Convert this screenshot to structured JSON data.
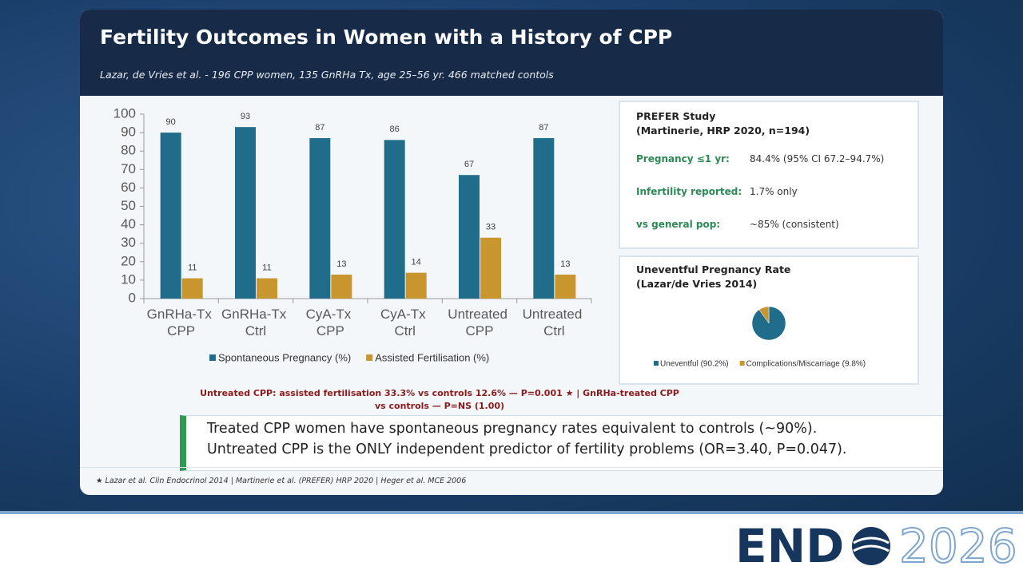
{
  "header": {
    "title": "Fertility Outcomes in Women with a History of CPP",
    "subtitle": "Lazar, de Vries et al. - 196 CPP women, 135 GnRHa Tx, age 25–56 yr. 466 matched contols"
  },
  "chart_data": [
    {
      "type": "bar",
      "categories": [
        "GnRHa-Tx CPP",
        "GnRHa-Tx Ctrl",
        "CyA-Tx CPP",
        "CyA-Tx Ctrl",
        "Untreated CPP",
        "Untreated Ctrl"
      ],
      "series": [
        {
          "name": "Spontaneous Pregnancy (%)",
          "color": "#1f6d8a",
          "values": [
            90,
            93,
            87,
            86,
            67,
            87
          ]
        },
        {
          "name": "Assisted Fertilisation (%)",
          "color": "#c9952f",
          "values": [
            11,
            11,
            13,
            14,
            33,
            13
          ]
        }
      ],
      "ylim": [
        0,
        100
      ],
      "yticks": [
        0,
        10,
        20,
        30,
        40,
        50,
        60,
        70,
        80,
        90,
        100
      ],
      "grid": false
    },
    {
      "type": "pie",
      "title": "Uneventful Pregnancy Rate",
      "subtitle": "(Lazar/de Vries 2014)",
      "categories": [
        "Uneventful (90.2%)",
        "Complications/Miscarriage (9.8%)"
      ],
      "values": [
        90.2,
        9.8
      ],
      "colors": [
        "#1f6d8a",
        "#c9952f"
      ]
    }
  ],
  "note": "Untreated CPP: assisted fertilisation 33.3% vs controls 12.6% — P=0.001 ★ | GnRHa-treated CPP vs controls — P=NS (1.00)",
  "prefer": {
    "title": "PREFER Study",
    "subtitle": "(Martinerie, HRP 2020, n=194)",
    "rows": [
      [
        "Pregnancy ≤1 yr:",
        "84.4% (95% CI 67.2–94.7%)"
      ],
      [
        "Infertility reported:",
        "1.7% only"
      ],
      [
        "vs general pop:",
        "~85% (consistent)"
      ]
    ]
  },
  "key_message": [
    "Treated CPP women have spontaneous pregnancy rates equivalent to controls (~90%).",
    "Untreated CPP is the ONLY independent predictor of fertility problems (OR=3.40, P=0.047)."
  ],
  "footnote": "★ Lazar et al. Clin Endocrinol 2014 | Martinerie et al. (PREFER) HRP 2020 | Heger et al. MCE 2006",
  "logo": {
    "bold": "END",
    "light": "2026"
  }
}
